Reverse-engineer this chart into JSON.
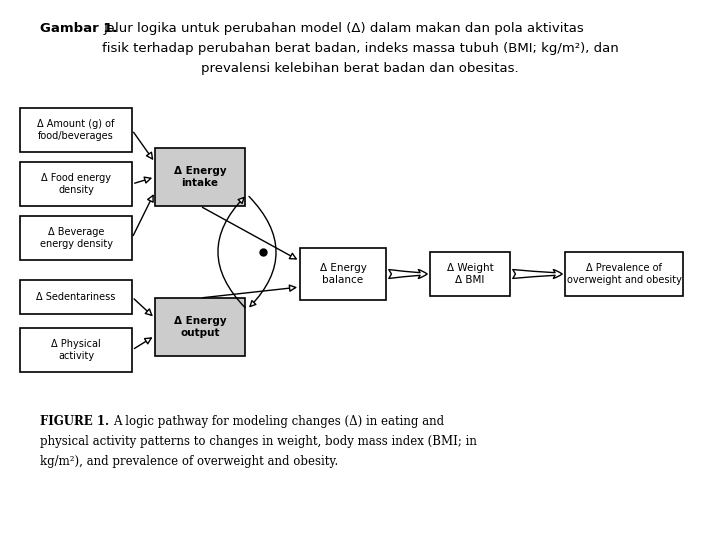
{
  "bg_color": "#ffffff",
  "title_bold": "Gambar 1.",
  "title_rest1": " Jalur logika untuk perubahan model (Δ) dalam makan dan pola aktivitas",
  "title_line2": "fisik terhadap perubahan berat badan, indeks massa tubuh (BMI; kg/m²), dan",
  "title_line3": "prevalensi kelebihan berat badan dan obesitas.",
  "caption_line1": "FIGURE 1. A logic pathway for modeling changes (Δ) in eating and",
  "caption_line2": "physical activity patterns to changes in weight, body mass index (BMI; in",
  "caption_line3": "kg/m²), and prevalence of overweight and obesity.",
  "box_amount_text": "Δ Amount (g) of\nfood/beverages",
  "box_food_text": "Δ Food energy\ndensity",
  "box_bev_text": "Δ Beverage\nenergy density",
  "box_sed_text": "Δ Sedentariness",
  "box_phys_text": "Δ Physical\nactivity",
  "box_intake_text": "Δ Energy\nintake",
  "box_output_text": "Δ Energy\noutput",
  "box_balance_text": "Δ Energy\nbalance",
  "box_weight_text": "Δ Weight\nΔ BMI",
  "box_prev_text": "Δ Prevalence of\noverweight and obesity"
}
